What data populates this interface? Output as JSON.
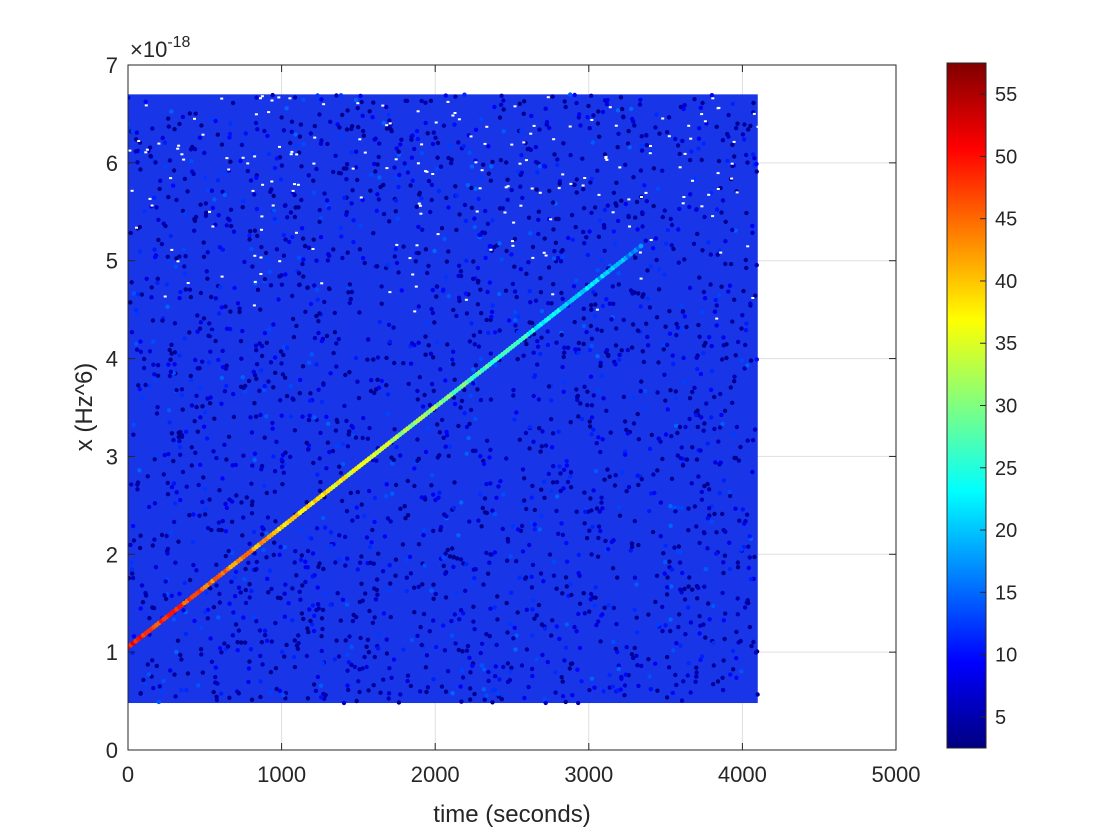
{
  "chart_data": {
    "type": "scatter",
    "xlabel": "time (seconds)",
    "ylabel": "x (Hz^6)",
    "y_exponent": {
      "base": "×10",
      "power": "-18"
    },
    "xlim": [
      0,
      5000
    ],
    "ylim": [
      0,
      7
    ],
    "x_ticks": [
      "0",
      "1000",
      "2000",
      "3000",
      "4000",
      "5000"
    ],
    "y_ticks": [
      "0",
      "1",
      "2",
      "3",
      "4",
      "5",
      "6",
      "7"
    ],
    "grid": true,
    "background_cloud": {
      "x_range": [
        0,
        4100
      ],
      "y_range": [
        0.48,
        6.7
      ],
      "color_value_range": [
        3,
        15
      ],
      "description_color": "#1030e0"
    },
    "track": {
      "x_start": 0,
      "x_end": 3340,
      "y_start": 1.05,
      "y_end": 5.15,
      "color_value_start": 50,
      "color_value_end": 17
    },
    "colorbar": {
      "colormap": "jet",
      "range": [
        2.5,
        57.5
      ],
      "ticks": [
        "5",
        "10",
        "15",
        "20",
        "25",
        "30",
        "35",
        "40",
        "45",
        "50",
        "55"
      ],
      "tick_values": [
        5,
        10,
        15,
        20,
        25,
        30,
        35,
        40,
        45,
        50,
        55
      ]
    },
    "colors": {
      "axis": "#262626",
      "grid": "#dfdfdf",
      "cloud_base": "#1836e8"
    }
  }
}
